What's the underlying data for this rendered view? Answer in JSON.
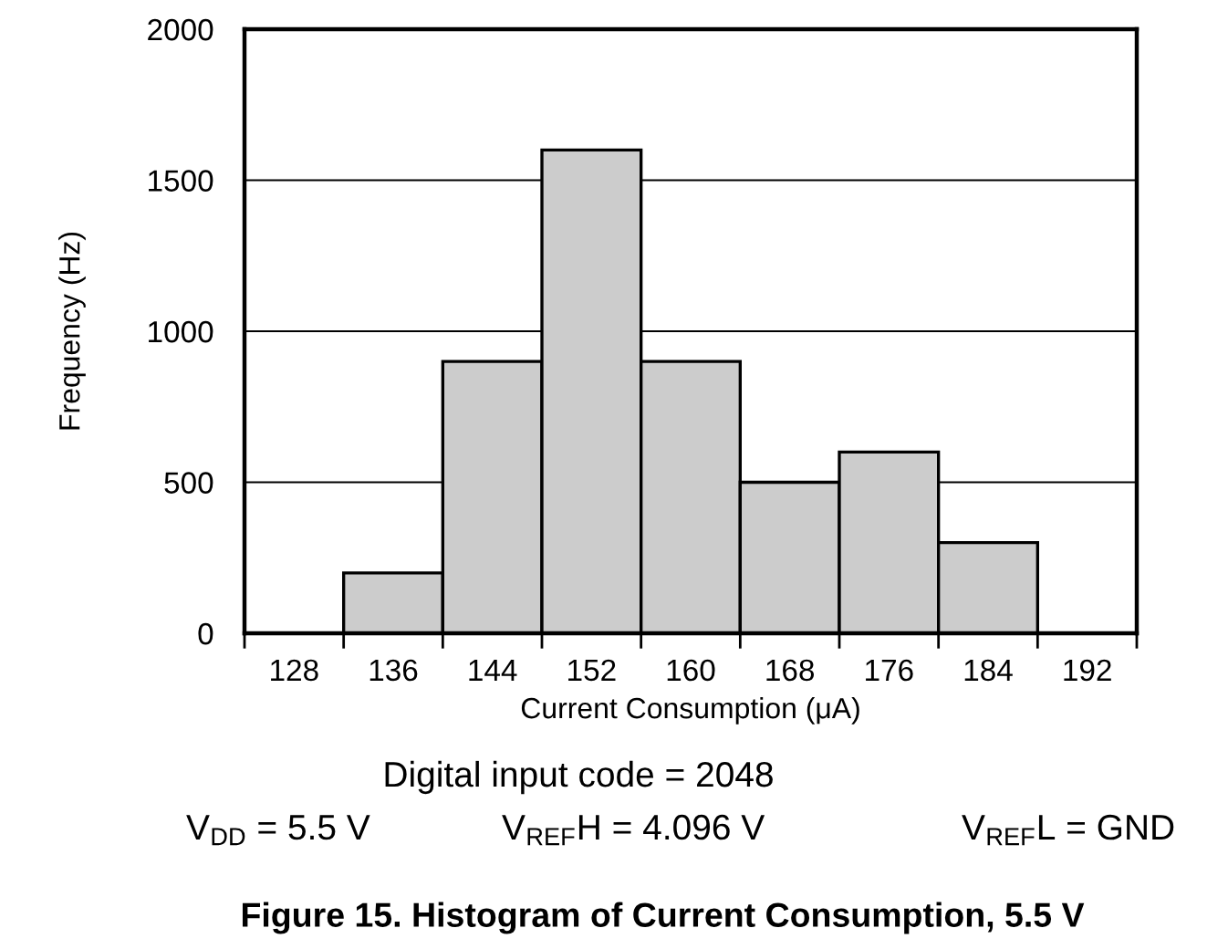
{
  "chart_data": {
    "type": "bar",
    "title": "Figure 15. Histogram of Current Consumption, 5.5 V",
    "xlabel": "Current Consumption (μA)",
    "ylabel": "Frequency (Hz)",
    "categories": [
      "128",
      "136",
      "144",
      "152",
      "160",
      "168",
      "176",
      "184",
      "192"
    ],
    "values": [
      0,
      200,
      900,
      1600,
      900,
      500,
      600,
      300,
      0
    ],
    "color": "#cccccc",
    "ylim": [
      0,
      2000
    ],
    "yticks": [
      0,
      500,
      1000,
      1500,
      2000
    ],
    "grid": "y",
    "annotations": [
      "Digital input code = 2048",
      "V$_{DD}$ = 5.5 V",
      "V$_{REF}$H = 4.096 V",
      "V$_{REF}$L = GND"
    ]
  }
}
